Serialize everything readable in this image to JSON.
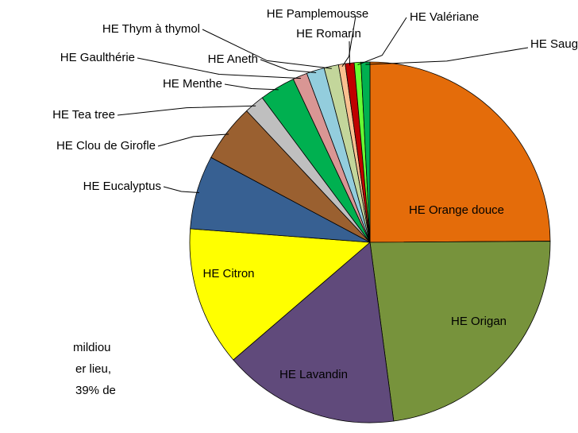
{
  "chart_data": {
    "type": "pie",
    "categories": [
      "HE Orange douce",
      "HE Origan",
      "HE Lavandin",
      "HE Citron",
      "HE Eucalyptus",
      "HE Clou de Girofle",
      "HE Tea tree",
      "HE Menthe",
      "HE Gaulthérie",
      "HE Aneth",
      "HE Thym à thymol",
      "HE Pamplemousse",
      "HE Romarin",
      "HE Valériane",
      "HE Sauge"
    ],
    "values": [
      24.9,
      23,
      15.8,
      12.5,
      6.6,
      5.2,
      1.8,
      3.2,
      1.3,
      1.6,
      1.3,
      0.6,
      0.8,
      0.6,
      0.8
    ],
    "colors": [
      "#e46c0a",
      "#77933c",
      "#604a7b",
      "#ffff00",
      "#376092",
      "#9a6030",
      "#bfbfbf",
      "#00b050",
      "#d99694",
      "#93cddd",
      "#c3d69b",
      "#fac090",
      "#c00000",
      "#66ff33",
      "#00b050"
    ],
    "annotations": [
      "mildiou",
      "er lieu,",
      "39% de"
    ]
  }
}
